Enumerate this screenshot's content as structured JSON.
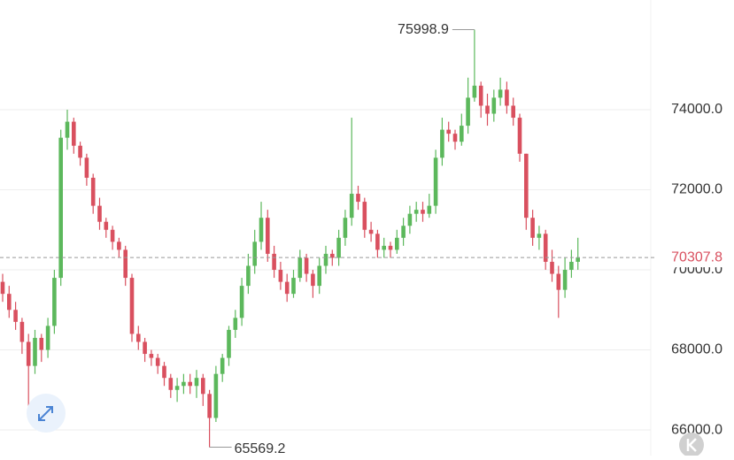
{
  "chart_data": {
    "type": "candlestick",
    "open": [
      69700,
      69400,
      69000,
      68700,
      68200,
      67600,
      68300,
      68000,
      68600,
      69800,
      73300,
      73700,
      73100,
      72800,
      72300,
      71600,
      71200,
      71000,
      70700,
      70500,
      69800,
      68400,
      68200,
      67900,
      67800,
      67600,
      67300,
      67000,
      67100,
      67200,
      67100,
      67300,
      66900,
      66300,
      67400,
      67800,
      68500,
      68800,
      69600,
      70100,
      70700,
      71300,
      70400,
      70000,
      69700,
      69400,
      69800,
      70300,
      69900,
      69600,
      70100,
      70400,
      70300,
      70800,
      71300,
      71900,
      71700,
      71000,
      70900,
      70500,
      70600,
      70500,
      70800,
      71100,
      71400,
      71500,
      71400,
      71600,
      72800,
      73500,
      73400,
      73200,
      73600,
      74300,
      74600,
      74100,
      73900,
      74300,
      74500,
      74100,
      73800,
      72900,
      71300,
      70800,
      70900,
      70200,
      69900,
      69500,
      70000,
      70200
    ],
    "high": [
      69900,
      69600,
      69200,
      68800,
      68400,
      68500,
      68400,
      68800,
      70000,
      73500,
      74000,
      73800,
      73200,
      72900,
      72400,
      71800,
      71300,
      71100,
      70800,
      70600,
      69900,
      68600,
      68300,
      68000,
      67900,
      67700,
      67400,
      67300,
      67400,
      67400,
      67500,
      67400,
      67000,
      67600,
      67900,
      68600,
      69000,
      69800,
      70400,
      71000,
      71700,
      71500,
      70600,
      70200,
      69900,
      70000,
      70500,
      70400,
      70000,
      70300,
      70600,
      70500,
      71000,
      71500,
      73800,
      72100,
      71800,
      71200,
      71000,
      70800,
      70700,
      71000,
      71300,
      71600,
      71700,
      71700,
      71900,
      73000,
      73800,
      73700,
      73500,
      73900,
      74800,
      75998.9,
      74700,
      74400,
      74500,
      74800,
      74700,
      74300,
      73900,
      72900,
      71500,
      71100,
      71000,
      70500,
      70100,
      70300,
      70500,
      70800
    ],
    "low": [
      69200,
      68800,
      68500,
      67900,
      66300,
      67400,
      67700,
      67800,
      68400,
      69600,
      73000,
      72900,
      72600,
      72100,
      71400,
      71000,
      70800,
      70500,
      70300,
      69600,
      68200,
      68000,
      67700,
      67600,
      67400,
      67100,
      66800,
      66700,
      66900,
      66900,
      66800,
      66600,
      65569.2,
      66200,
      67200,
      67600,
      68300,
      68600,
      69400,
      69900,
      70500,
      70200,
      69800,
      69500,
      69200,
      69300,
      69700,
      69700,
      69300,
      69400,
      69900,
      70100,
      70100,
      70600,
      71100,
      71500,
      70800,
      70700,
      70300,
      70300,
      70300,
      70400,
      70600,
      70900,
      71200,
      71200,
      71300,
      71400,
      72600,
      73200,
      73000,
      73100,
      73400,
      74200,
      73800,
      73600,
      73700,
      74100,
      73900,
      73600,
      72700,
      71000,
      70600,
      70500,
      70000,
      69700,
      68800,
      69300,
      69800,
      70000
    ],
    "close": [
      69400,
      69000,
      68700,
      68200,
      67600,
      68300,
      68000,
      68600,
      69800,
      73300,
      73700,
      73100,
      72800,
      72300,
      71600,
      71200,
      71000,
      70700,
      70500,
      69800,
      68400,
      68200,
      67900,
      67800,
      67600,
      67300,
      67000,
      67100,
      67200,
      67100,
      67300,
      66900,
      66300,
      67400,
      67800,
      68500,
      68800,
      69600,
      70100,
      70700,
      71300,
      70400,
      70000,
      69700,
      69400,
      69800,
      70300,
      69900,
      69600,
      70100,
      70400,
      70300,
      70800,
      71300,
      71900,
      71700,
      71000,
      70900,
      70500,
      70600,
      70500,
      70800,
      71100,
      71400,
      71500,
      71400,
      71600,
      72800,
      73500,
      73400,
      73200,
      73600,
      74300,
      74600,
      74100,
      73900,
      74300,
      74500,
      74100,
      73800,
      72900,
      71300,
      70800,
      70900,
      70200,
      69900,
      69500,
      70000,
      70200,
      70307.8
    ],
    "up_color": "#5cb85c",
    "down_color": "#d9505f",
    "ylim": [
      65360,
      76740
    ],
    "yticks": [
      {
        "value": 66000,
        "label": "66000.0"
      },
      {
        "value": 68000,
        "label": "68000.0"
      },
      {
        "value": 70000,
        "label": "70000.0"
      },
      {
        "value": 72000,
        "label": "72000.0"
      },
      {
        "value": 74000,
        "label": "74000.0"
      }
    ],
    "grid": true
  }
}
